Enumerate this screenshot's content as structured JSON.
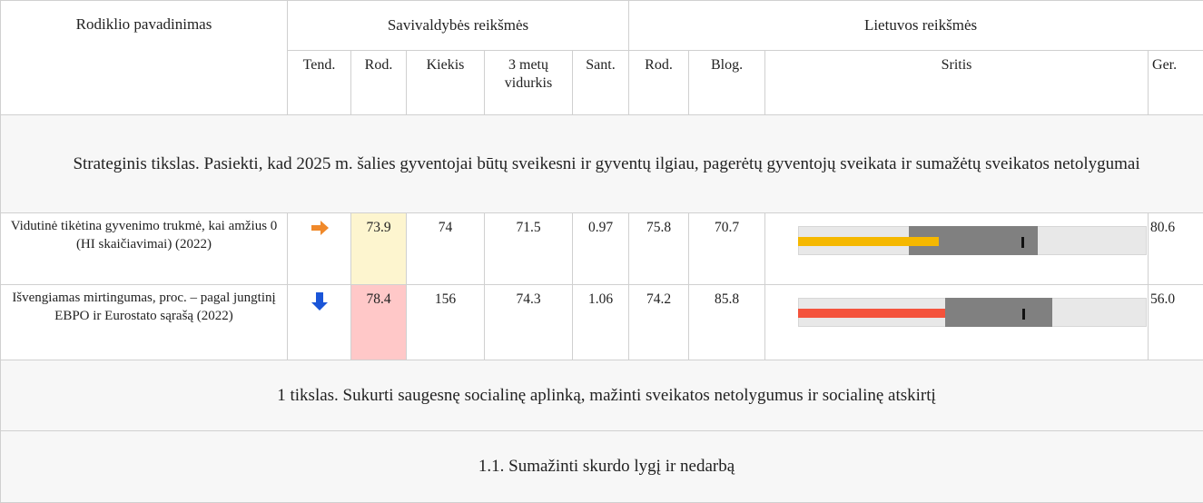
{
  "header": {
    "name": "Rodiklio pavadinimas",
    "municipal": "Savivaldybės reikšmės",
    "national": "Lietuvos reikšmės",
    "columns": [
      "Tend.",
      "Rod.",
      "Kiekis",
      "3 metų vidurkis",
      "Sant.",
      "Rod.",
      "Blog.",
      "Sritis",
      "Ger."
    ]
  },
  "goal": "Strateginis tikslas. Pasiekti, kad 2025 m. šalies gyventojai būtų sveikesni ir gyventų ilgiau, pagerėtų gyventojų sveikata ir sumažėtų sveikatos netolygumai",
  "rows": [
    {
      "name": "Vidutinė tikėtina gyvenimo trukmė, kai amžius 0 (HI skaičiavimai) (2022)",
      "rod": 73.9,
      "kiekis": 74,
      "avg": 71.5,
      "sant": 0.97,
      "lt_rod": 75.8,
      "blog": 70.7,
      "ger": 80.6
    },
    {
      "name": "Išvengiamas mirtingumas, proc. – pagal jungtinį EBPO ir Eurostato sąrašą (2022)",
      "rod": 78.4,
      "kiekis": 156,
      "avg": 74.3,
      "sant": 1.06,
      "lt_rod": 74.2,
      "blog": 85.8,
      "ger": "56.0"
    }
  ],
  "subgoals": [
    "1 tikslas. Sukurti saugesnę socialinę aplinką, mažinti sveikatos netolygumus ir socialinę atskirtį",
    "1.1. Sumažinti skurdo lygį ir nedarbą"
  ]
}
